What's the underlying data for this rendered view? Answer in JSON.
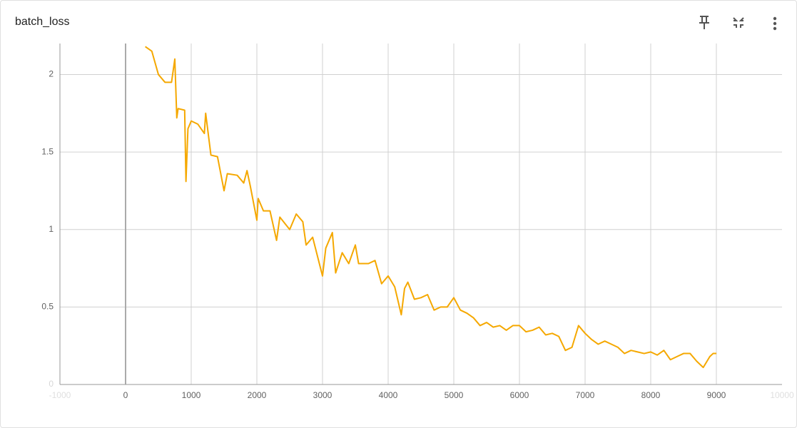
{
  "chart_data": {
    "type": "line",
    "title": "batch_loss",
    "xlim": [
      -1000,
      10000
    ],
    "ylim": [
      0,
      2.2
    ],
    "xticks": [
      -1000,
      0,
      1000,
      2000,
      3000,
      4000,
      5000,
      6000,
      7000,
      8000,
      9000,
      10000
    ],
    "yticks": [
      0,
      0.5,
      1,
      1.5,
      2
    ],
    "grid": true,
    "x": [
      300,
      400,
      500,
      600,
      700,
      750,
      780,
      800,
      900,
      920,
      950,
      1000,
      1100,
      1200,
      1220,
      1300,
      1400,
      1500,
      1550,
      1700,
      1800,
      1850,
      1900,
      2000,
      2020,
      2100,
      2200,
      2300,
      2350,
      2500,
      2600,
      2700,
      2750,
      2850,
      3000,
      3050,
      3150,
      3200,
      3300,
      3400,
      3500,
      3550,
      3700,
      3800,
      3900,
      4000,
      4100,
      4200,
      4250,
      4300,
      4400,
      4500,
      4600,
      4700,
      4800,
      4900,
      5000,
      5100,
      5200,
      5300,
      5400,
      5500,
      5600,
      5700,
      5800,
      5900,
      6000,
      6100,
      6200,
      6300,
      6400,
      6500,
      6600,
      6700,
      6800,
      6900,
      7000,
      7100,
      7200,
      7300,
      7400,
      7500,
      7600,
      7700,
      7800,
      7900,
      8000,
      8100,
      8200,
      8300,
      8400,
      8500,
      8600,
      8700,
      8800,
      8900,
      8950,
      9000
    ],
    "series": [
      {
        "name": "batch_loss",
        "color": "#f5a800",
        "values": [
          2.18,
          2.15,
          2.0,
          1.95,
          1.95,
          2.1,
          1.72,
          1.78,
          1.77,
          1.31,
          1.65,
          1.7,
          1.68,
          1.62,
          1.75,
          1.48,
          1.47,
          1.25,
          1.36,
          1.35,
          1.3,
          1.38,
          1.28,
          1.06,
          1.2,
          1.12,
          1.12,
          0.93,
          1.08,
          1.0,
          1.1,
          1.05,
          0.9,
          0.95,
          0.7,
          0.88,
          0.98,
          0.72,
          0.85,
          0.78,
          0.9,
          0.78,
          0.78,
          0.8,
          0.65,
          0.7,
          0.63,
          0.45,
          0.62,
          0.66,
          0.55,
          0.56,
          0.58,
          0.48,
          0.5,
          0.5,
          0.56,
          0.48,
          0.46,
          0.43,
          0.38,
          0.4,
          0.37,
          0.38,
          0.35,
          0.38,
          0.38,
          0.34,
          0.35,
          0.37,
          0.32,
          0.33,
          0.31,
          0.22,
          0.24,
          0.38,
          0.33,
          0.29,
          0.26,
          0.28,
          0.26,
          0.24,
          0.2,
          0.22,
          0.21,
          0.2,
          0.21,
          0.19,
          0.22,
          0.16,
          0.18,
          0.2,
          0.2,
          0.15,
          0.11,
          0.18,
          0.2,
          0.2
        ]
      }
    ]
  }
}
